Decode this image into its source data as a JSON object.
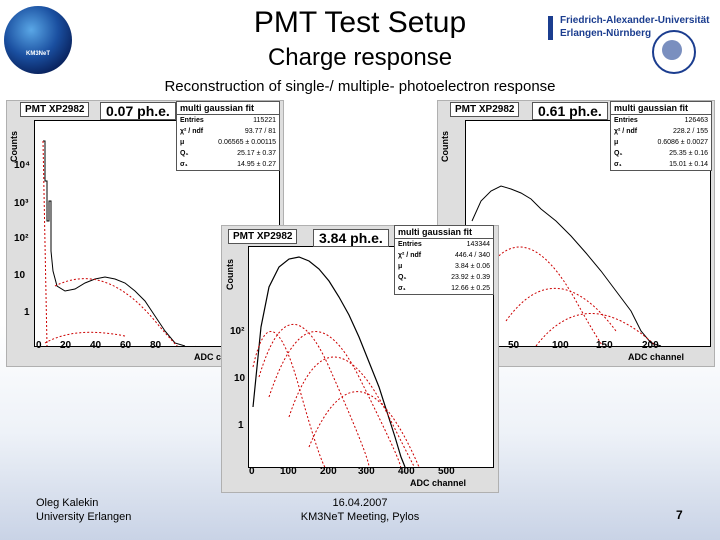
{
  "slide": {
    "title": "PMT Test Setup",
    "subtitle": "Charge response",
    "caption": "Reconstruction of single-/ multiple- photoelectron response",
    "logo_text": "KM3NeT",
    "university": [
      "Friedrich-Alexander-Universität",
      "Erlangen-Nürnberg"
    ]
  },
  "plots": {
    "left": {
      "tag": "PMT XP2982",
      "phe": "0.07 ph.e.",
      "fit_title": "multi gaussian fit",
      "stats": [
        [
          "Entries",
          "115221"
        ],
        [
          "χ² / ndf",
          "93.77 / 81"
        ],
        [
          "μ",
          "0.06565 ± 0.00115"
        ],
        [
          "Q₁",
          "25.17 ± 0.37"
        ],
        [
          "σ₁",
          "14.95 ± 0.27"
        ]
      ],
      "ylabel": "Counts",
      "xlabel": "ADC c",
      "yticks": [
        "10⁴",
        "10³",
        "10²",
        "10",
        "1"
      ],
      "xticks": [
        "0",
        "20",
        "40",
        "60",
        "80"
      ]
    },
    "right": {
      "tag": "PMT XP2982",
      "phe": "0.61 ph.e.",
      "fit_title": "multi gaussian fit",
      "stats": [
        [
          "Entries",
          "126463"
        ],
        [
          "χ² / ndf",
          "228.2 / 155"
        ],
        [
          "μ",
          "0.6086 ± 0.0027"
        ],
        [
          "Q₁",
          "25.35 ± 0.16"
        ],
        [
          "σ₁",
          "15.01 ± 0.14"
        ]
      ],
      "ylabel": "Counts",
      "xlabel": "ADC channel",
      "xticks": [
        "50",
        "100",
        "150",
        "200"
      ]
    },
    "center": {
      "tag": "PMT XP2982",
      "phe": "3.84 ph.e.",
      "fit_title": "multi gaussian fit",
      "stats": [
        [
          "Entries",
          "143344"
        ],
        [
          "χ² / ndf",
          "446.4 / 340"
        ],
        [
          "μ",
          "3.84 ± 0.06"
        ],
        [
          "Q₁",
          "23.92 ± 0.39"
        ],
        [
          "σ₁",
          "12.66 ± 0.25"
        ]
      ],
      "ylabel": "Counts",
      "xlabel": "ADC channel",
      "yticks": [
        "10²",
        "10",
        "1"
      ],
      "xticks": [
        "0",
        "100",
        "200",
        "300",
        "400",
        "500"
      ]
    }
  },
  "footer": {
    "author": "Oleg Kalekin",
    "affiliation": "University Erlangen",
    "date": "16.04.2007",
    "meeting": "KM3NeT Meeting, Pylos",
    "page": "7"
  }
}
